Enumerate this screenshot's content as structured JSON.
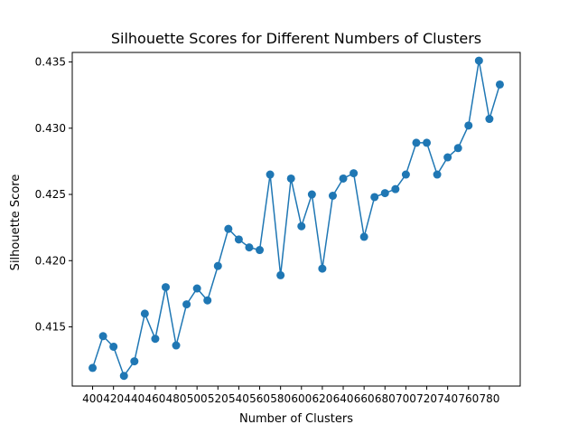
{
  "chart_data": {
    "type": "line",
    "title": "Silhouette Scores for Different Numbers of Clusters",
    "xlabel": "Number of Clusters",
    "ylabel": "Silhouette Score",
    "x": [
      400,
      410,
      420,
      430,
      440,
      450,
      460,
      470,
      480,
      490,
      500,
      510,
      520,
      530,
      540,
      550,
      560,
      570,
      580,
      590,
      600,
      610,
      620,
      630,
      640,
      650,
      660,
      670,
      680,
      690,
      700,
      710,
      720,
      730,
      740,
      750,
      760,
      770,
      780,
      790
    ],
    "series": [
      {
        "values": [
          0.4119,
          0.4143,
          0.4135,
          0.4113,
          0.4124,
          0.416,
          0.4141,
          0.418,
          0.4136,
          0.4167,
          0.4179,
          0.417,
          0.4196,
          0.4224,
          0.4216,
          0.421,
          0.4208,
          0.4265,
          0.4189,
          0.4262,
          0.4226,
          0.425,
          0.4194,
          0.4249,
          0.4262,
          0.4266,
          0.4218,
          0.4248,
          0.4251,
          0.4254,
          0.4265,
          0.4289,
          0.4289,
          0.4265,
          0.4278,
          0.4285,
          0.4302,
          0.4351,
          0.4307,
          0.4333
        ],
        "color": "#1f77b4"
      }
    ],
    "xticks": [
      400,
      420,
      440,
      460,
      480,
      500,
      520,
      540,
      560,
      580,
      600,
      620,
      640,
      660,
      680,
      700,
      720,
      740,
      760,
      780
    ],
    "yticks": [
      0.415,
      0.42,
      0.425,
      0.43,
      0.435
    ],
    "xlim": [
      380.5,
      809.5
    ],
    "ylim": [
      0.41053,
      0.43572
    ],
    "grid": false,
    "legend": "none"
  }
}
